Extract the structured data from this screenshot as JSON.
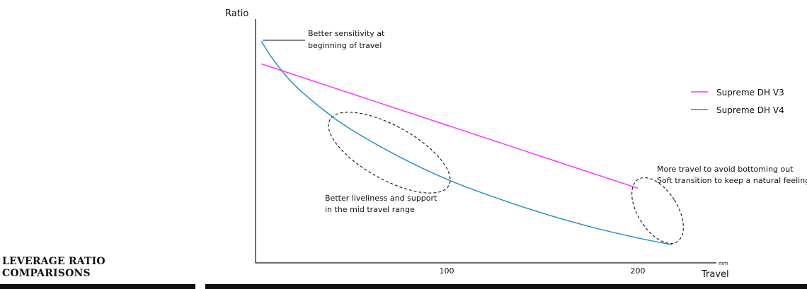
{
  "section": {
    "title_line1": "LEVERAGE RATIO",
    "title_line2": "COMPARISONS"
  },
  "chart_data": {
    "type": "line",
    "ylabel": "Ratio",
    "xlabel": "Travel",
    "xunit": "mm",
    "xticks": [
      100,
      200
    ],
    "xlim": [
      0,
      240
    ],
    "ylim": [
      0,
      1
    ],
    "grid": false,
    "legend_position": "right",
    "series": [
      {
        "name": "Supreme DH V3",
        "color": "#ff33ff",
        "x": [
          3,
          200
        ],
        "y": [
          0.88,
          0.33
        ]
      },
      {
        "name": "Supreme DH V4",
        "color": "#2b8fc4",
        "x": [
          3,
          10,
          20,
          35,
          50,
          75,
          100,
          125,
          150,
          175,
          200,
          218
        ],
        "y": [
          0.98,
          0.89,
          0.79,
          0.68,
          0.59,
          0.47,
          0.37,
          0.29,
          0.22,
          0.16,
          0.11,
          0.08
        ]
      }
    ],
    "annotations": [
      {
        "id": "start",
        "lines": [
          "Better sensitivity at",
          "beginning of travel"
        ]
      },
      {
        "id": "mid",
        "lines": [
          "Better liveliness and support",
          "in the mid travel range"
        ]
      },
      {
        "id": "end",
        "lines": [
          "More travel to avoid bottoming out",
          "Soft transition to keep a natural feeling"
        ]
      }
    ]
  }
}
